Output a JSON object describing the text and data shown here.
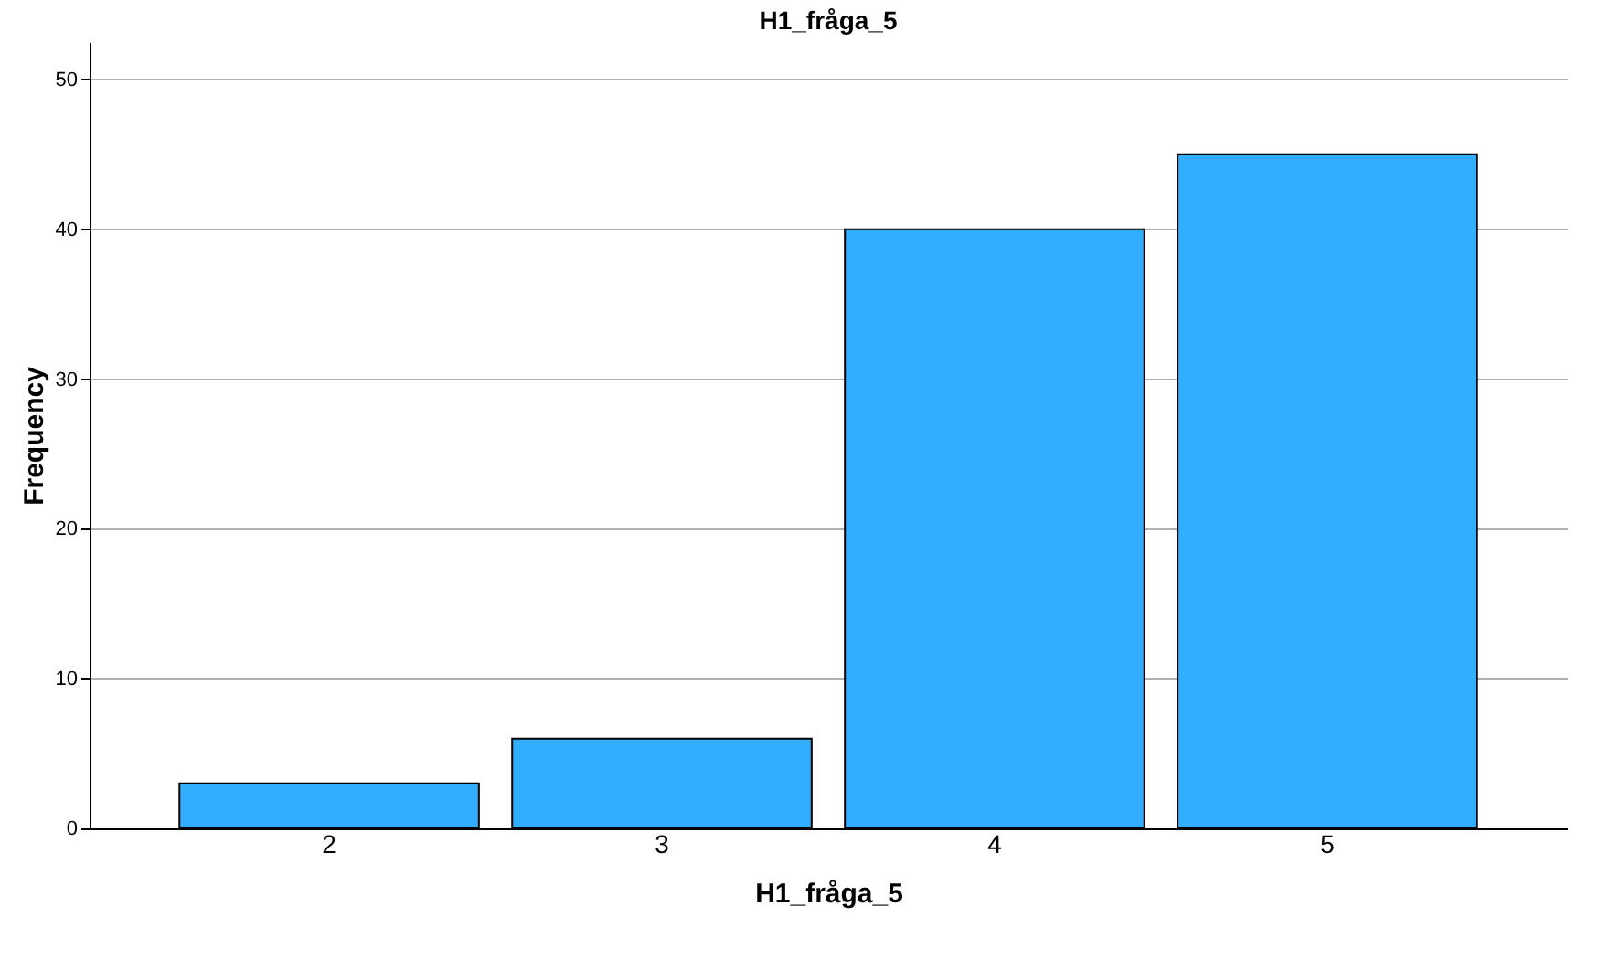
{
  "chart_data": {
    "type": "bar",
    "title": "H1_fråga_5",
    "xlabel": "H1_fråga_5",
    "ylabel": "Frequency",
    "categories": [
      "2",
      "3",
      "4",
      "5"
    ],
    "values": [
      3,
      6,
      40,
      45
    ],
    "color": "#33adff",
    "ylim": [
      0,
      52.5
    ],
    "yticks": [
      0,
      10,
      20,
      30,
      40,
      50
    ],
    "grid": "y"
  }
}
